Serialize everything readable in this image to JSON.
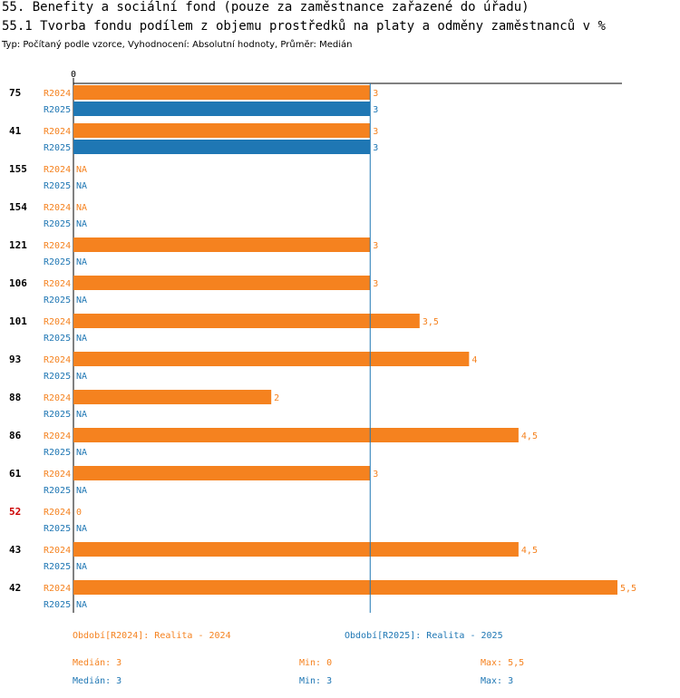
{
  "header": {
    "title": "55. Benefity a sociální fond (pouze za zaměstnance zařazené do úřadu)",
    "subtitle": "55.1 Tvorba fondu podílem z objemu prostředků na platy a odměny zaměstnanců v %",
    "meta": "Typ: Počítaný podle vzorce, Vyhodnocení: Absolutní hodnoty, Průměr: Medián"
  },
  "colors": {
    "r2024": "#f5821f",
    "r2025": "#1f77b4",
    "highlight": "#cc0000",
    "axis": "#000000"
  },
  "chart_data": {
    "type": "bar",
    "orientation": "horizontal",
    "x_axis_label": "0",
    "xlim": [
      0,
      5.5
    ],
    "median_line": 3,
    "series": [
      {
        "name": "R2024",
        "label": "R2024"
      },
      {
        "name": "R2025",
        "label": "R2025"
      }
    ],
    "categories": [
      {
        "id": "75",
        "highlight": false,
        "r2024": 3,
        "r2024_label": "3",
        "r2025": 3,
        "r2025_label": "3"
      },
      {
        "id": "41",
        "highlight": false,
        "r2024": 3,
        "r2024_label": "3",
        "r2025": 3,
        "r2025_label": "3"
      },
      {
        "id": "155",
        "highlight": false,
        "r2024": null,
        "r2024_label": "NA",
        "r2025": null,
        "r2025_label": "NA"
      },
      {
        "id": "154",
        "highlight": false,
        "r2024": null,
        "r2024_label": "NA",
        "r2025": null,
        "r2025_label": "NA"
      },
      {
        "id": "121",
        "highlight": false,
        "r2024": 3,
        "r2024_label": "3",
        "r2025": null,
        "r2025_label": "NA"
      },
      {
        "id": "106",
        "highlight": false,
        "r2024": 3,
        "r2024_label": "3",
        "r2025": null,
        "r2025_label": "NA"
      },
      {
        "id": "101",
        "highlight": false,
        "r2024": 3.5,
        "r2024_label": "3,5",
        "r2025": null,
        "r2025_label": "NA"
      },
      {
        "id": "93",
        "highlight": false,
        "r2024": 4,
        "r2024_label": "4",
        "r2025": null,
        "r2025_label": "NA"
      },
      {
        "id": "88",
        "highlight": false,
        "r2024": 2,
        "r2024_label": "2",
        "r2025": null,
        "r2025_label": "NA"
      },
      {
        "id": "86",
        "highlight": false,
        "r2024": 4.5,
        "r2024_label": "4,5",
        "r2025": null,
        "r2025_label": "NA"
      },
      {
        "id": "61",
        "highlight": false,
        "r2024": 3,
        "r2024_label": "3",
        "r2025": null,
        "r2025_label": "NA"
      },
      {
        "id": "52",
        "highlight": true,
        "r2024": 0,
        "r2024_label": "0",
        "r2025": null,
        "r2025_label": "NA"
      },
      {
        "id": "43",
        "highlight": false,
        "r2024": 4.5,
        "r2024_label": "4,5",
        "r2025": null,
        "r2025_label": "NA"
      },
      {
        "id": "42",
        "highlight": false,
        "r2024": 5.5,
        "r2024_label": "5,5",
        "r2025": null,
        "r2025_label": "NA"
      }
    ]
  },
  "legend": {
    "r2024": "Období[R2024]: Realita - 2024",
    "r2025": "Období[R2025]: Realita - 2025"
  },
  "stats": {
    "r2024": {
      "median": "Medián: 3",
      "min": "Min: 0",
      "max": "Max: 5,5"
    },
    "r2025": {
      "median": "Medián: 3",
      "min": "Min: 3",
      "max": "Max: 3"
    }
  }
}
